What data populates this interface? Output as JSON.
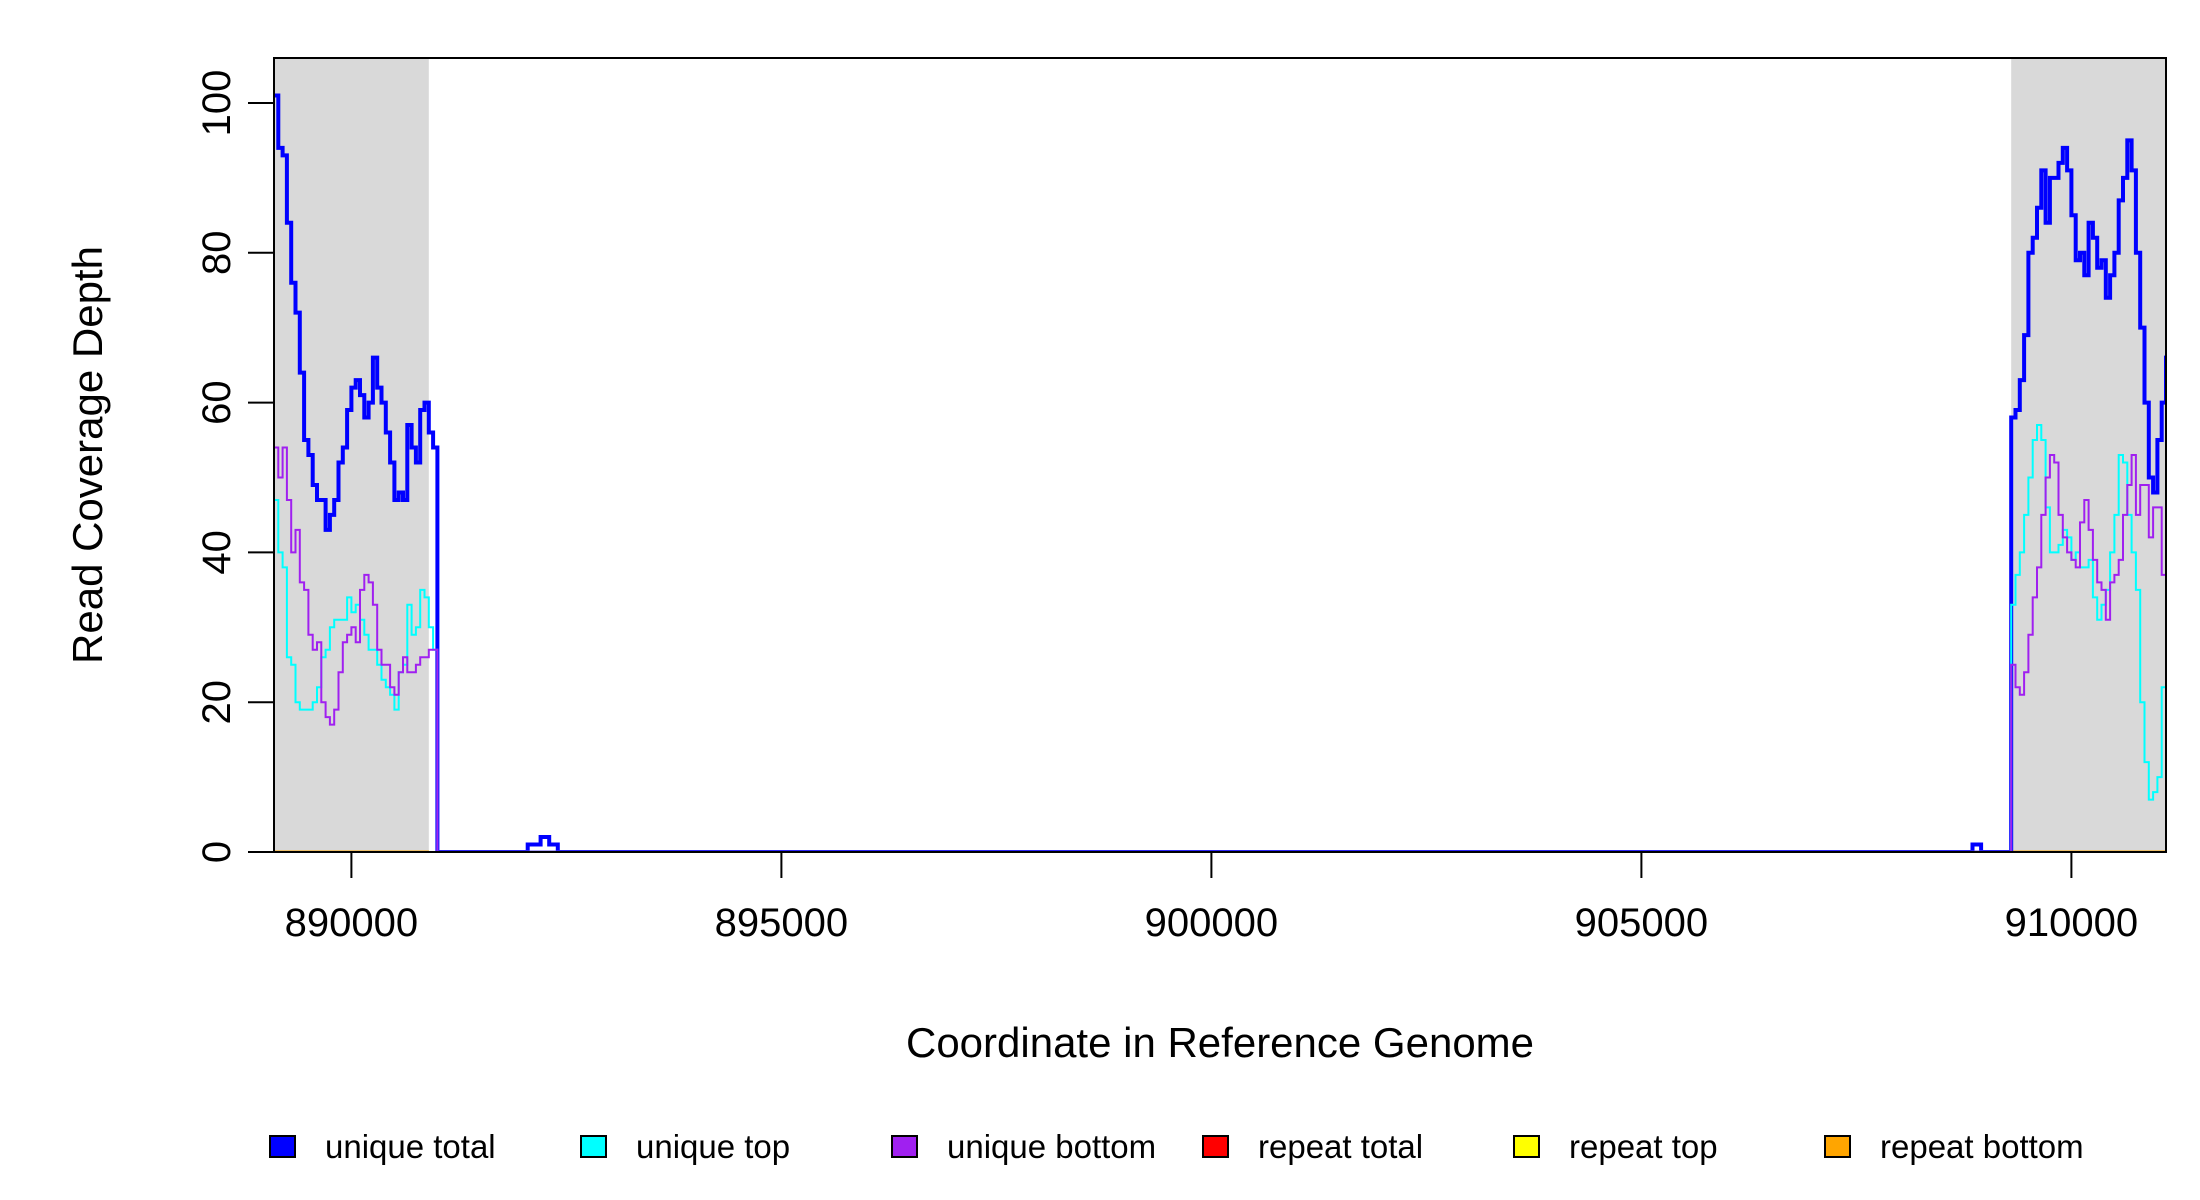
{
  "chart_data": {
    "type": "line",
    "step": true,
    "title": "",
    "xlabel": "Coordinate in Reference Genome",
    "ylabel": "Read Coverage Depth",
    "xlim": [
      889100,
      911100
    ],
    "ylim": [
      0,
      106
    ],
    "xticks": [
      890000,
      895000,
      900000,
      905000,
      910000
    ],
    "xtick_labels": [
      "890000",
      "895000",
      "900000",
      "905000",
      "910000"
    ],
    "yticks": [
      0,
      20,
      40,
      60,
      80,
      100
    ],
    "ytick_labels": [
      "0",
      "20",
      "40",
      "60",
      "80",
      "100"
    ],
    "grid": false,
    "legend_placement": "bottom",
    "shaded_regions": [
      [
        889100,
        890900
      ],
      [
        909300,
        911100
      ]
    ],
    "shade_color": "#d9d9d9",
    "left_region": {
      "x_start": 889100,
      "x_step": 50,
      "unique_total": [
        101,
        94,
        93,
        84,
        76,
        72,
        64,
        55,
        53,
        49,
        47,
        47,
        43,
        45,
        47,
        52,
        54,
        59,
        62,
        63,
        61,
        58,
        60,
        66,
        62,
        60,
        56,
        52,
        47,
        48,
        47,
        57,
        54,
        52,
        59,
        60,
        56,
        54
      ],
      "unique_top": [
        47,
        40,
        38,
        26,
        25,
        20,
        19,
        19,
        19,
        20,
        22,
        26,
        27,
        30,
        31,
        31,
        31,
        34,
        32,
        33,
        31,
        29,
        27,
        27,
        25,
        23,
        22,
        21,
        19,
        24,
        25,
        33,
        29,
        30,
        35,
        34,
        30,
        27
      ],
      "unique_bottom": [
        54,
        50,
        54,
        47,
        40,
        43,
        36,
        35,
        29,
        27,
        28,
        20,
        18,
        17,
        19,
        24,
        28,
        29,
        30,
        28,
        35,
        37,
        36,
        33,
        27,
        25,
        25,
        22,
        21,
        24,
        26,
        24,
        24,
        25,
        26,
        26,
        27,
        27
      ]
    },
    "right_region": {
      "x_start": 909300,
      "x_step": 50,
      "unique_total": [
        58,
        59,
        63,
        69,
        80,
        82,
        86,
        91,
        84,
        90,
        90,
        92,
        94,
        91,
        85,
        79,
        80,
        77,
        84,
        82,
        78,
        79,
        74,
        77,
        80,
        87,
        90,
        95,
        91,
        80,
        70,
        60,
        50,
        48,
        55,
        60,
        66,
        77
      ],
      "unique_top": [
        33,
        37,
        40,
        45,
        50,
        55,
        57,
        55,
        46,
        40,
        40,
        41,
        43,
        42,
        39,
        40,
        38,
        38,
        39,
        34,
        31,
        33,
        35,
        40,
        45,
        53,
        52,
        45,
        40,
        35,
        20,
        12,
        7,
        8,
        10,
        22,
        30,
        30
      ],
      "unique_bottom": [
        25,
        22,
        21,
        24,
        29,
        34,
        38,
        45,
        50,
        53,
        52,
        45,
        42,
        40,
        39,
        38,
        44,
        47,
        43,
        39,
        36,
        35,
        31,
        36,
        37,
        39,
        45,
        49,
        53,
        45,
        49,
        49,
        42,
        46,
        46,
        37,
        37,
        37
      ]
    },
    "middle_blips": [
      {
        "x": [
          892050,
          892200,
          892300,
          892400
        ],
        "unique_total": [
          1,
          2,
          1,
          0
        ]
      },
      {
        "x": [
          908850,
          908950
        ],
        "unique_total": [
          1,
          0
        ]
      }
    ],
    "series": [
      {
        "name": "unique total",
        "key": "unique_total",
        "color": "#0000ff"
      },
      {
        "name": "unique top",
        "key": "unique_top",
        "color": "#00ffff"
      },
      {
        "name": "unique bottom",
        "key": "unique_bottom",
        "color": "#a020f0"
      },
      {
        "name": "repeat total",
        "key": "repeat_total",
        "color": "#ff0000",
        "value": 0
      },
      {
        "name": "repeat top",
        "key": "repeat_top",
        "color": "#ffff00",
        "value": 0
      },
      {
        "name": "repeat bottom",
        "key": "repeat_bottom",
        "color": "#ffa500",
        "value": 0
      }
    ]
  }
}
